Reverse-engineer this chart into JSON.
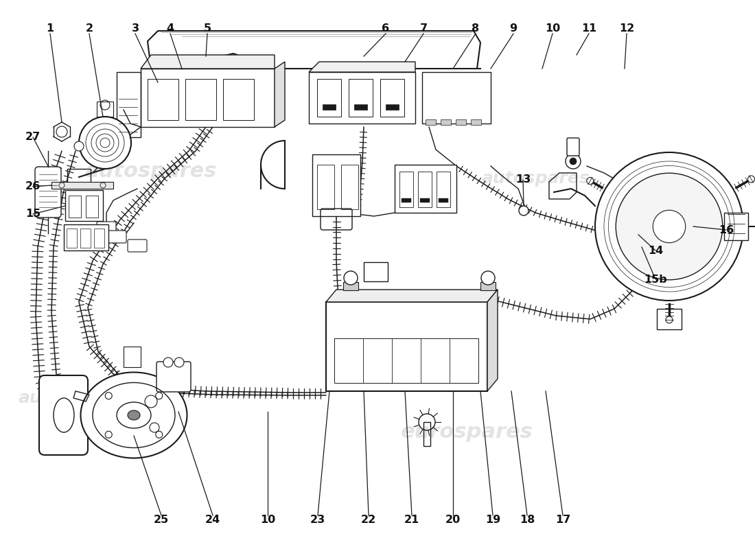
{
  "bg_color": "#ffffff",
  "lc": "#1a1a1a",
  "wm_color": "#cccccc",
  "figsize": [
    11.0,
    8.0
  ],
  "dpi": 100,
  "labels_top": [
    [
      "1",
      73,
      748
    ],
    [
      "2",
      130,
      748
    ],
    [
      "3",
      197,
      748
    ],
    [
      "4",
      248,
      748
    ],
    [
      "5",
      302,
      748
    ],
    [
      "6",
      562,
      748
    ],
    [
      "7",
      617,
      748
    ],
    [
      "8",
      693,
      748
    ],
    [
      "9",
      748,
      748
    ],
    [
      "10",
      805,
      748
    ],
    [
      "11",
      858,
      748
    ],
    [
      "12",
      913,
      748
    ]
  ],
  "labels_right": [
    [
      "13",
      762,
      538
    ],
    [
      "14",
      952,
      440
    ],
    [
      "15",
      58,
      488
    ],
    [
      "16",
      1050,
      472
    ],
    [
      "27",
      58,
      595
    ],
    [
      "26",
      58,
      512
    ],
    [
      "15b",
      952,
      393
    ]
  ],
  "labels_bottom": [
    [
      "25",
      235,
      52
    ],
    [
      "24",
      310,
      52
    ],
    [
      "10",
      390,
      52
    ],
    [
      "23",
      463,
      52
    ],
    [
      "22",
      537,
      52
    ],
    [
      "21",
      600,
      52
    ],
    [
      "20",
      660,
      52
    ],
    [
      "19",
      718,
      52
    ],
    [
      "18",
      768,
      52
    ],
    [
      "17",
      820,
      52
    ]
  ]
}
